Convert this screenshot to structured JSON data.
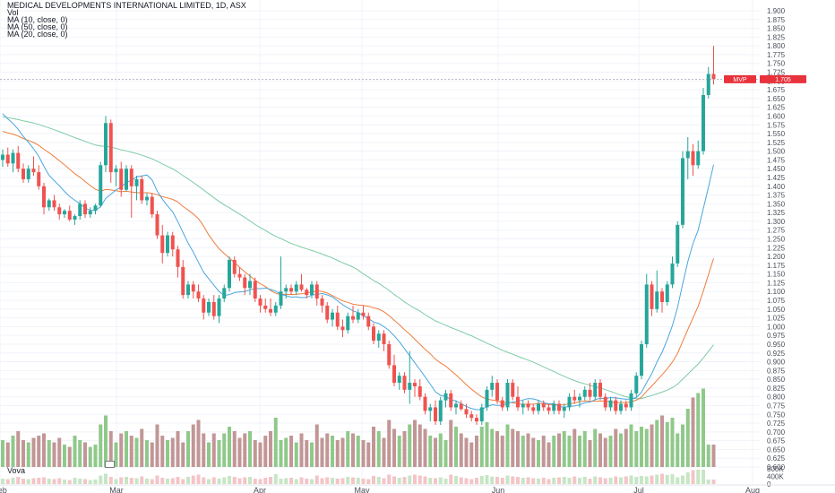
{
  "legend": {
    "title": "MEDICAL DEVELOPMENTS INTERNATIONAL LIMITED, 1D, ASX",
    "vol": "Vol",
    "ma10": "MA (10, close, 0)",
    "ma50": "MA (50, close, 0)",
    "ma20": "MA (20, close, 0)"
  },
  "pane_label": "Vova",
  "price_label": {
    "symbol": "MVP",
    "value": "1.705"
  },
  "colors": {
    "up": "#26a69a",
    "down": "#ef5350",
    "up_vol": "#8fc98a",
    "down_vol": "#c29696",
    "ma10": "#4aa6e0",
    "ma20": "#f07d3c",
    "ma50": "#7ecba4",
    "label_bg": "#e8323c"
  },
  "chart_data": {
    "type": "candlestick",
    "y_ticks": [
      "1.900",
      "1.875",
      "1.850",
      "1.825",
      "1.800",
      "1.775",
      "1.750",
      "1.725",
      "1.700",
      "1.675",
      "1.650",
      "1.625",
      "1.600",
      "1.575",
      "1.550",
      "1.525",
      "1.500",
      "1.475",
      "1.450",
      "1.425",
      "1.400",
      "1.375",
      "1.350",
      "1.325",
      "1.300",
      "1.275",
      "1.250",
      "1.225",
      "1.200",
      "1.175",
      "1.150",
      "1.125",
      "1.100",
      "1.075",
      "1.050",
      "1.025",
      "1.000",
      "0.975",
      "0.950",
      "0.925",
      "0.900",
      "0.875",
      "0.850",
      "0.825",
      "0.800",
      "0.775",
      "0.750",
      "0.725",
      "0.700",
      "0.675",
      "0.650",
      "0.625",
      "0.600"
    ],
    "ylim": [
      0.6,
      1.9
    ],
    "volume_ticks": [
      "800K",
      "400K",
      "0"
    ],
    "x_ticks": [
      "Feb",
      "Mar",
      "Apr",
      "May",
      "Jun",
      "Jul",
      "Aug"
    ],
    "last_price": 1.705,
    "candles": [
      [
        1.475,
        1.505,
        1.455,
        1.49
      ],
      [
        1.49,
        1.51,
        1.455,
        1.465
      ],
      [
        1.465,
        1.505,
        1.44,
        1.495
      ],
      [
        1.495,
        1.515,
        1.44,
        1.45
      ],
      [
        1.45,
        1.465,
        1.41,
        1.42
      ],
      [
        1.42,
        1.46,
        1.41,
        1.45
      ],
      [
        1.45,
        1.485,
        1.43,
        1.44
      ],
      [
        1.44,
        1.46,
        1.39,
        1.4
      ],
      [
        1.4,
        1.41,
        1.32,
        1.34
      ],
      [
        1.34,
        1.365,
        1.33,
        1.36
      ],
      [
        1.36,
        1.375,
        1.33,
        1.34
      ],
      [
        1.34,
        1.35,
        1.305,
        1.32
      ],
      [
        1.32,
        1.335,
        1.31,
        1.33
      ],
      [
        1.33,
        1.345,
        1.3,
        1.305
      ],
      [
        1.305,
        1.32,
        1.29,
        1.315
      ],
      [
        1.315,
        1.36,
        1.305,
        1.35
      ],
      [
        1.35,
        1.36,
        1.31,
        1.32
      ],
      [
        1.32,
        1.34,
        1.31,
        1.33
      ],
      [
        1.33,
        1.35,
        1.32,
        1.345
      ],
      [
        1.345,
        1.47,
        1.34,
        1.46
      ],
      [
        1.46,
        1.6,
        1.44,
        1.58
      ],
      [
        1.58,
        1.59,
        1.41,
        1.44
      ],
      [
        1.44,
        1.46,
        1.4,
        1.45
      ],
      [
        1.45,
        1.47,
        1.37,
        1.39
      ],
      [
        1.39,
        1.46,
        1.385,
        1.45
      ],
      [
        1.45,
        1.46,
        1.31,
        1.4
      ],
      [
        1.4,
        1.43,
        1.36,
        1.42
      ],
      [
        1.42,
        1.43,
        1.35,
        1.36
      ],
      [
        1.36,
        1.38,
        1.345,
        1.37
      ],
      [
        1.37,
        1.38,
        1.31,
        1.32
      ],
      [
        1.32,
        1.33,
        1.25,
        1.26
      ],
      [
        1.26,
        1.29,
        1.18,
        1.21
      ],
      [
        1.21,
        1.27,
        1.2,
        1.26
      ],
      [
        1.26,
        1.27,
        1.2,
        1.22
      ],
      [
        1.22,
        1.23,
        1.14,
        1.17
      ],
      [
        1.17,
        1.19,
        1.08,
        1.09
      ],
      [
        1.09,
        1.13,
        1.08,
        1.12
      ],
      [
        1.12,
        1.13,
        1.08,
        1.1
      ],
      [
        1.1,
        1.12,
        1.07,
        1.08
      ],
      [
        1.08,
        1.09,
        1.02,
        1.04
      ],
      [
        1.04,
        1.08,
        1.03,
        1.07
      ],
      [
        1.07,
        1.09,
        1.02,
        1.03
      ],
      [
        1.03,
        1.09,
        1.01,
        1.08
      ],
      [
        1.08,
        1.12,
        1.07,
        1.11
      ],
      [
        1.11,
        1.2,
        1.1,
        1.19
      ],
      [
        1.19,
        1.2,
        1.14,
        1.15
      ],
      [
        1.15,
        1.17,
        1.13,
        1.14
      ],
      [
        1.14,
        1.15,
        1.09,
        1.11
      ],
      [
        1.11,
        1.15,
        1.09,
        1.13
      ],
      [
        1.13,
        1.14,
        1.07,
        1.08
      ],
      [
        1.08,
        1.09,
        1.04,
        1.06
      ],
      [
        1.06,
        1.08,
        1.04,
        1.05
      ],
      [
        1.05,
        1.08,
        1.03,
        1.04
      ],
      [
        1.04,
        1.07,
        1.03,
        1.06
      ],
      [
        1.06,
        1.2,
        1.05,
        1.1
      ],
      [
        1.1,
        1.12,
        1.08,
        1.11
      ],
      [
        1.11,
        1.12,
        1.09,
        1.1
      ],
      [
        1.1,
        1.13,
        1.09,
        1.12
      ],
      [
        1.12,
        1.15,
        1.1,
        1.105
      ],
      [
        1.105,
        1.11,
        1.08,
        1.09
      ],
      [
        1.09,
        1.13,
        1.08,
        1.12
      ],
      [
        1.12,
        1.13,
        1.06,
        1.08
      ],
      [
        1.08,
        1.09,
        1.04,
        1.06
      ],
      [
        1.06,
        1.07,
        1.01,
        1.02
      ],
      [
        1.02,
        1.05,
        1.0,
        1.04
      ],
      [
        1.04,
        1.06,
        0.99,
        1.0
      ],
      [
        1.0,
        1.02,
        0.97,
        0.99
      ],
      [
        0.99,
        1.04,
        0.98,
        1.03
      ],
      [
        1.03,
        1.06,
        1.01,
        1.02
      ],
      [
        1.02,
        1.05,
        1.01,
        1.04
      ],
      [
        1.04,
        1.06,
        1.02,
        1.03
      ],
      [
        1.03,
        1.04,
        0.99,
        1.0
      ],
      [
        1.0,
        1.01,
        0.95,
        0.96
      ],
      [
        0.96,
        0.99,
        0.94,
        0.98
      ],
      [
        0.98,
        0.99,
        0.93,
        0.95
      ],
      [
        0.95,
        0.96,
        0.88,
        0.89
      ],
      [
        0.89,
        0.92,
        0.83,
        0.84
      ],
      [
        0.84,
        0.87,
        0.82,
        0.86
      ],
      [
        0.86,
        0.87,
        0.81,
        0.82
      ],
      [
        0.82,
        0.93,
        0.78,
        0.84
      ],
      [
        0.84,
        0.85,
        0.8,
        0.83
      ],
      [
        0.83,
        0.85,
        0.79,
        0.8
      ],
      [
        0.8,
        0.81,
        0.75,
        0.76
      ],
      [
        0.76,
        0.78,
        0.73,
        0.77
      ],
      [
        0.77,
        0.79,
        0.72,
        0.73
      ],
      [
        0.73,
        0.8,
        0.72,
        0.79
      ],
      [
        0.79,
        0.82,
        0.77,
        0.81
      ],
      [
        0.81,
        0.82,
        0.76,
        0.77
      ],
      [
        0.77,
        0.79,
        0.75,
        0.78
      ],
      [
        0.78,
        0.79,
        0.76,
        0.765
      ],
      [
        0.765,
        0.78,
        0.74,
        0.75
      ],
      [
        0.75,
        0.76,
        0.73,
        0.74
      ],
      [
        0.74,
        0.75,
        0.72,
        0.73
      ],
      [
        0.73,
        0.78,
        0.72,
        0.77
      ],
      [
        0.77,
        0.83,
        0.76,
        0.82
      ],
      [
        0.82,
        0.86,
        0.8,
        0.84
      ],
      [
        0.84,
        0.85,
        0.78,
        0.79
      ],
      [
        0.79,
        0.8,
        0.76,
        0.77
      ],
      [
        0.77,
        0.85,
        0.76,
        0.84
      ],
      [
        0.84,
        0.85,
        0.79,
        0.8
      ],
      [
        0.8,
        0.83,
        0.76,
        0.77
      ],
      [
        0.77,
        0.79,
        0.75,
        0.78
      ],
      [
        0.78,
        0.79,
        0.76,
        0.77
      ],
      [
        0.77,
        0.78,
        0.75,
        0.76
      ],
      [
        0.76,
        0.79,
        0.75,
        0.78
      ],
      [
        0.78,
        0.79,
        0.76,
        0.77
      ],
      [
        0.77,
        0.78,
        0.75,
        0.76
      ],
      [
        0.76,
        0.79,
        0.75,
        0.78
      ],
      [
        0.78,
        0.79,
        0.75,
        0.76
      ],
      [
        0.76,
        0.78,
        0.74,
        0.77
      ],
      [
        0.77,
        0.81,
        0.76,
        0.8
      ],
      [
        0.8,
        0.82,
        0.78,
        0.79
      ],
      [
        0.79,
        0.81,
        0.77,
        0.8
      ],
      [
        0.8,
        0.83,
        0.79,
        0.82
      ],
      [
        0.82,
        0.84,
        0.79,
        0.8
      ],
      [
        0.8,
        0.85,
        0.79,
        0.84
      ],
      [
        0.84,
        0.85,
        0.79,
        0.8
      ],
      [
        0.8,
        0.81,
        0.76,
        0.77
      ],
      [
        0.77,
        0.8,
        0.76,
        0.79
      ],
      [
        0.79,
        0.8,
        0.75,
        0.76
      ],
      [
        0.76,
        0.79,
        0.75,
        0.78
      ],
      [
        0.78,
        0.79,
        0.76,
        0.77
      ],
      [
        0.77,
        0.82,
        0.76,
        0.81
      ],
      [
        0.81,
        0.87,
        0.8,
        0.86
      ],
      [
        0.86,
        0.96,
        0.85,
        0.95
      ],
      [
        0.95,
        1.15,
        0.94,
        1.12
      ],
      [
        1.12,
        1.13,
        1.03,
        1.05
      ],
      [
        1.05,
        1.16,
        1.04,
        1.1
      ],
      [
        1.1,
        1.11,
        1.04,
        1.07
      ],
      [
        1.07,
        1.13,
        1.06,
        1.12
      ],
      [
        1.12,
        1.2,
        1.11,
        1.18
      ],
      [
        1.18,
        1.3,
        1.17,
        1.29
      ],
      [
        1.29,
        1.5,
        1.28,
        1.48
      ],
      [
        1.48,
        1.54,
        1.42,
        1.5
      ],
      [
        1.5,
        1.52,
        1.43,
        1.46
      ],
      [
        1.46,
        1.53,
        1.45,
        1.5
      ],
      [
        1.5,
        1.68,
        1.49,
        1.66
      ],
      [
        1.66,
        1.74,
        1.65,
        1.72
      ],
      [
        1.72,
        1.8,
        1.69,
        1.705
      ]
    ],
    "volumes": [
      120,
      110,
      140,
      160,
      120,
      110,
      130,
      140,
      150,
      120,
      110,
      130,
      100,
      90,
      140,
      120,
      110,
      90,
      100,
      190,
      230,
      160,
      110,
      150,
      160,
      140,
      130,
      170,
      120,
      110,
      190,
      140,
      120,
      130,
      160,
      110,
      160,
      190,
      210,
      150,
      110,
      150,
      120,
      150,
      180,
      160,
      130,
      150,
      160,
      120,
      110,
      140,
      160,
      220,
      120,
      130,
      140,
      110,
      150,
      120,
      110,
      190,
      130,
      150,
      140,
      120,
      130,
      160,
      150,
      140,
      120,
      110,
      180,
      160,
      130,
      210,
      170,
      140,
      160,
      190,
      210,
      190,
      170,
      140,
      130,
      150,
      120,
      210,
      180,
      150,
      130,
      110,
      140,
      180,
      200,
      170,
      160,
      140,
      190,
      170,
      160,
      140,
      150,
      130,
      120,
      140,
      110,
      140,
      150,
      160,
      140,
      170,
      140,
      160,
      120,
      170,
      150,
      130,
      140,
      170,
      150,
      170,
      190,
      160,
      180,
      170,
      190,
      210,
      230,
      200,
      220,
      150,
      190,
      260,
      310,
      330,
      350
    ]
  }
}
